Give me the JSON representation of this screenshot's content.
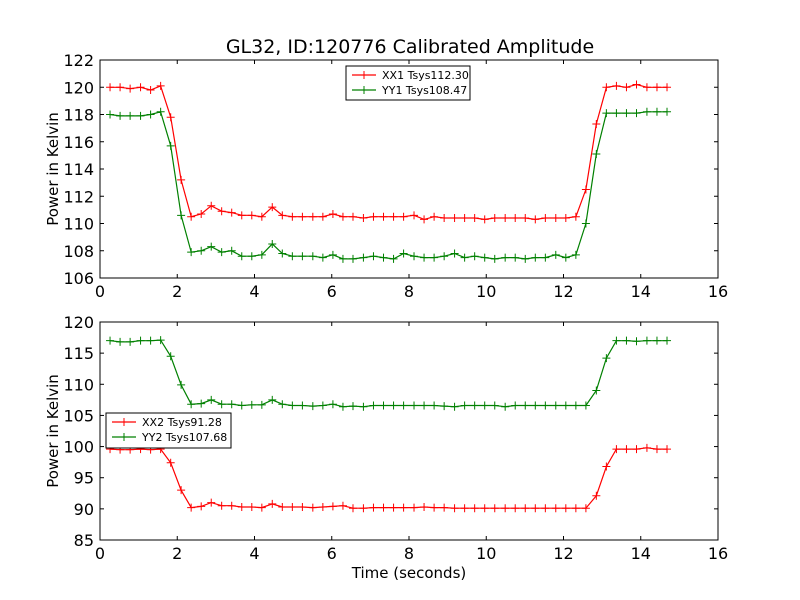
{
  "figure": {
    "title": "GL32, ID:120776 Calibrated Amplitude"
  },
  "colors": {
    "series_red": "#ff0000",
    "series_green": "#008000",
    "axes": "#000000",
    "background": "#ffffff"
  },
  "chart_data": [
    {
      "type": "line",
      "title": "GL32, ID:120776 Calibrated Amplitude",
      "xlabel": "",
      "ylabel": "Power in Kelvin",
      "xlim": [
        0,
        16
      ],
      "ylim": [
        106,
        122
      ],
      "xticks": [
        0,
        2,
        4,
        6,
        8,
        10,
        12,
        14,
        16
      ],
      "yticks": [
        106,
        108,
        110,
        112,
        114,
        116,
        118,
        120,
        122
      ],
      "grid": false,
      "legend_position": "upper-center",
      "marker": "plus",
      "x": [
        0.26,
        0.52,
        0.78,
        1.05,
        1.31,
        1.57,
        1.83,
        2.1,
        2.36,
        2.62,
        2.88,
        3.15,
        3.41,
        3.67,
        3.93,
        4.19,
        4.46,
        4.72,
        4.98,
        5.24,
        5.51,
        5.77,
        6.03,
        6.29,
        6.55,
        6.82,
        7.08,
        7.34,
        7.6,
        7.86,
        8.13,
        8.39,
        8.65,
        8.91,
        9.18,
        9.44,
        9.7,
        9.96,
        10.22,
        10.49,
        10.75,
        11.01,
        11.27,
        11.53,
        11.8,
        12.06,
        12.32,
        12.58,
        12.85,
        13.11,
        13.37,
        13.63,
        13.89,
        14.16,
        14.42,
        14.68
      ],
      "series": [
        {
          "name": "XX1 Tsys112.30",
          "color": "#ff0000",
          "values": [
            120.0,
            120.0,
            119.9,
            120.0,
            119.8,
            120.1,
            117.8,
            113.2,
            110.5,
            110.7,
            111.3,
            110.9,
            110.8,
            110.6,
            110.6,
            110.5,
            111.2,
            110.6,
            110.5,
            110.5,
            110.5,
            110.5,
            110.7,
            110.5,
            110.5,
            110.4,
            110.5,
            110.5,
            110.5,
            110.5,
            110.6,
            110.3,
            110.5,
            110.4,
            110.4,
            110.4,
            110.4,
            110.3,
            110.4,
            110.4,
            110.4,
            110.4,
            110.3,
            110.4,
            110.4,
            110.4,
            110.5,
            112.5,
            117.3,
            120.0,
            120.1,
            120.0,
            120.2,
            120.0,
            120.0,
            120.0
          ]
        },
        {
          "name": "YY1 Tsys108.47",
          "color": "#008000",
          "values": [
            118.0,
            117.9,
            117.9,
            117.9,
            118.0,
            118.2,
            115.7,
            110.6,
            107.9,
            108.0,
            108.3,
            107.9,
            108.0,
            107.6,
            107.6,
            107.7,
            108.5,
            107.8,
            107.6,
            107.6,
            107.6,
            107.5,
            107.7,
            107.4,
            107.4,
            107.5,
            107.6,
            107.5,
            107.4,
            107.8,
            107.6,
            107.5,
            107.5,
            107.6,
            107.8,
            107.5,
            107.6,
            107.5,
            107.4,
            107.5,
            107.5,
            107.4,
            107.5,
            107.5,
            107.7,
            107.5,
            107.7,
            110.0,
            115.1,
            118.1,
            118.1,
            118.1,
            118.1,
            118.2,
            118.2,
            118.2
          ]
        }
      ]
    },
    {
      "type": "line",
      "title": "",
      "xlabel": "Time (seconds)",
      "ylabel": "Power in Kelvin",
      "xlim": [
        0,
        16
      ],
      "ylim": [
        85,
        120
      ],
      "xticks": [
        0,
        2,
        4,
        6,
        8,
        10,
        12,
        14,
        16
      ],
      "yticks": [
        85,
        90,
        95,
        100,
        105,
        110,
        115,
        120
      ],
      "grid": false,
      "legend_position": "center-left",
      "marker": "plus",
      "x": [
        0.26,
        0.52,
        0.78,
        1.05,
        1.31,
        1.57,
        1.83,
        2.1,
        2.36,
        2.62,
        2.88,
        3.15,
        3.41,
        3.67,
        3.93,
        4.19,
        4.46,
        4.72,
        4.98,
        5.24,
        5.51,
        5.77,
        6.03,
        6.29,
        6.55,
        6.82,
        7.08,
        7.34,
        7.6,
        7.86,
        8.13,
        8.39,
        8.65,
        8.91,
        9.18,
        9.44,
        9.7,
        9.96,
        10.22,
        10.49,
        10.75,
        11.01,
        11.27,
        11.53,
        11.8,
        12.06,
        12.32,
        12.58,
        12.85,
        13.11,
        13.37,
        13.63,
        13.89,
        14.16,
        14.42,
        14.68
      ],
      "series": [
        {
          "name": "XX2 Tsys91.28",
          "color": "#ff0000",
          "values": [
            99.6,
            99.5,
            99.5,
            99.6,
            99.5,
            99.6,
            97.4,
            93.0,
            90.2,
            90.4,
            91.0,
            90.5,
            90.5,
            90.3,
            90.3,
            90.2,
            90.8,
            90.3,
            90.3,
            90.3,
            90.2,
            90.3,
            90.4,
            90.5,
            90.1,
            90.1,
            90.2,
            90.2,
            90.2,
            90.2,
            90.2,
            90.3,
            90.2,
            90.2,
            90.1,
            90.1,
            90.1,
            90.1,
            90.1,
            90.1,
            90.1,
            90.1,
            90.1,
            90.1,
            90.1,
            90.1,
            90.1,
            90.1,
            92.1,
            96.8,
            99.6,
            99.6,
            99.6,
            99.8,
            99.6,
            99.6
          ]
        },
        {
          "name": "YY2 Tsys107.68",
          "color": "#008000",
          "values": [
            117.0,
            116.8,
            116.8,
            117.0,
            117.0,
            117.1,
            114.5,
            109.9,
            106.8,
            106.9,
            107.5,
            106.8,
            106.8,
            106.6,
            106.7,
            106.7,
            107.5,
            106.8,
            106.6,
            106.6,
            106.5,
            106.6,
            106.8,
            106.4,
            106.5,
            106.4,
            106.6,
            106.6,
            106.6,
            106.6,
            106.6,
            106.6,
            106.6,
            106.5,
            106.4,
            106.6,
            106.6,
            106.6,
            106.6,
            106.4,
            106.6,
            106.6,
            106.6,
            106.6,
            106.6,
            106.6,
            106.6,
            106.6,
            109.0,
            114.2,
            117.0,
            117.0,
            116.9,
            117.0,
            117.0,
            117.0
          ]
        }
      ]
    }
  ]
}
